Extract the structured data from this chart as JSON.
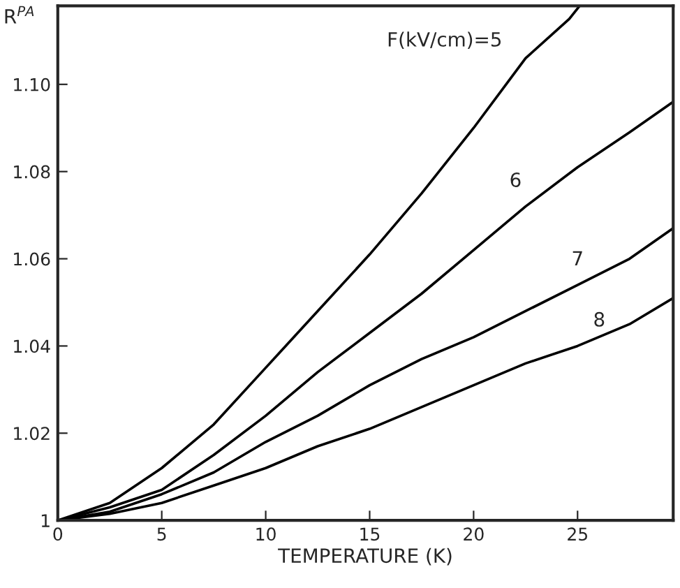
{
  "chart_data": {
    "type": "line",
    "xlabel": "TEMPERATURE (K)",
    "ylabel": "R$^{PA}$",
    "x": [
      0,
      2.5,
      5,
      7.5,
      10,
      12.5,
      15,
      17.5,
      20,
      22.5,
      25,
      27.5,
      29.6
    ],
    "series": [
      {
        "name": "F(kV/cm)=5",
        "color": "#000000",
        "x": [
          0,
          2.5,
          5,
          7.5,
          10,
          12.5,
          15,
          17.5,
          20,
          22.5,
          24.6,
          25.1
        ],
        "values": [
          1.0,
          1.004,
          1.012,
          1.022,
          1.035,
          1.048,
          1.061,
          1.075,
          1.09,
          1.106,
          1.115,
          1.118
        ]
      },
      {
        "name": "6",
        "color": "#000000",
        "values": [
          1.0,
          1.003,
          1.007,
          1.015,
          1.024,
          1.034,
          1.043,
          1.052,
          1.062,
          1.072,
          1.081,
          1.089,
          1.096
        ]
      },
      {
        "name": "7",
        "color": "#000000",
        "values": [
          1.0,
          1.002,
          1.006,
          1.011,
          1.018,
          1.024,
          1.031,
          1.037,
          1.042,
          1.048,
          1.054,
          1.06,
          1.067
        ]
      },
      {
        "name": "8",
        "color": "#000000",
        "values": [
          1.0,
          1.0015,
          1.004,
          1.008,
          1.012,
          1.017,
          1.021,
          1.026,
          1.031,
          1.036,
          1.04,
          1.045,
          1.051
        ]
      }
    ],
    "xlim": [
      0,
      29.6
    ],
    "ylim": [
      1,
      1.118
    ],
    "xticks": [
      0,
      5,
      10,
      15,
      20,
      25
    ],
    "yticks": [
      1,
      1.02,
      1.04,
      1.06,
      1.08,
      {
        "value": 1.1,
        "label": "1.10"
      }
    ],
    "grid": false,
    "legend": false,
    "marker": "none",
    "line_style": "solid"
  }
}
